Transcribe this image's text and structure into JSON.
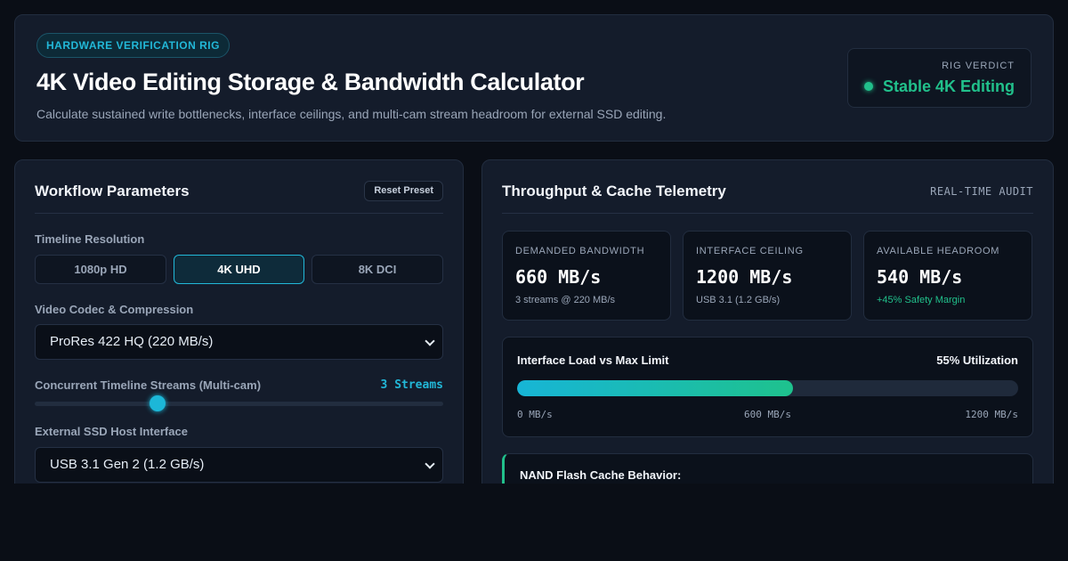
{
  "header": {
    "badge": "HARDWARE VERIFICATION RIG",
    "title": "4K Video Editing Storage & Bandwidth Calculator",
    "subtitle": "Calculate sustained write bottlenecks, interface ceilings, and multi-cam stream headroom for external SSD editing.",
    "verdict_label": "RIG VERDICT",
    "verdict_value": "Stable 4K Editing",
    "verdict_color": "#21c08b"
  },
  "workflow": {
    "title": "Workflow Parameters",
    "reset_label": "Reset Preset",
    "resolution_label": "Timeline Resolution",
    "resolutions": [
      "1080p HD",
      "4K UHD",
      "8K DCI"
    ],
    "selected_resolution": "4K UHD",
    "codec_label": "Video Codec & Compression",
    "codec_value": "ProRes 422 HQ (220 MB/s)",
    "streams_label": "Concurrent Timeline Streams (Multi-cam)",
    "streams_value": "3 Streams",
    "streams_level_fraction": 0.3,
    "interface_label": "External SSD Host Interface",
    "interface_value": "USB 3.1 Gen 2 (1.2 GB/s)"
  },
  "telemetry": {
    "title": "Throughput & Cache Telemetry",
    "audit_label": "REAL-TIME AUDIT",
    "metrics": [
      {
        "label": "DEMANDED BANDWIDTH",
        "value": "660 MB/s",
        "note": "3 streams @ 220 MB/s"
      },
      {
        "label": "INTERFACE CEILING",
        "value": "1200 MB/s",
        "note": "USB 3.1 (1.2 GB/s)"
      },
      {
        "label": "AVAILABLE HEADROOM",
        "value": "540 MB/s",
        "note": "+45% Safety Margin"
      }
    ],
    "load_title": "Interface Load vs Max Limit",
    "utilization_label": "55% Utilization",
    "utilization_percent": 55,
    "scale_ticks": [
      "0 MB/s",
      "600 MB/s",
      "1200 MB/s"
    ],
    "cache_title": "NAND Flash Cache Behavior:"
  },
  "colors": {
    "accent_cyan": "#22b8d8",
    "accent_green": "#21c08b",
    "background": "#0a0e16",
    "panel": "#141c2b"
  }
}
